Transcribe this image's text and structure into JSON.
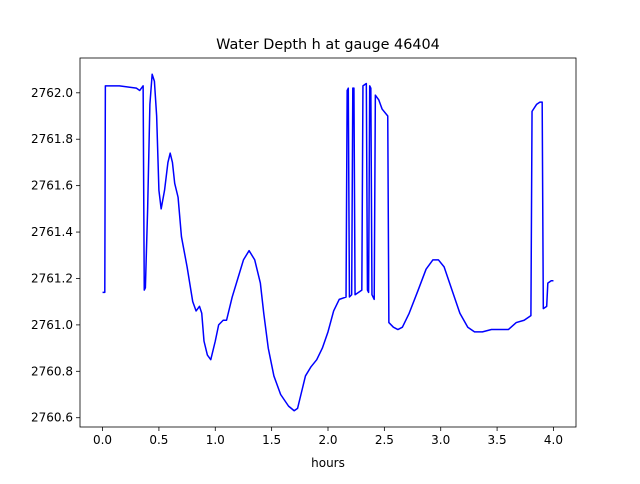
{
  "chart_data": {
    "type": "line",
    "title": "Water Depth h at gauge 46404",
    "xlabel": "hours",
    "ylabel": "",
    "xlim": [
      -0.2,
      4.2
    ],
    "ylim": [
      2760.56,
      2762.15
    ],
    "xticks": [
      0.0,
      0.5,
      1.0,
      1.5,
      2.0,
      2.5,
      3.0,
      3.5,
      4.0
    ],
    "xtick_labels": [
      "0.0",
      "0.5",
      "1.0",
      "1.5",
      "2.0",
      "2.5",
      "3.0",
      "3.5",
      "4.0"
    ],
    "yticks": [
      2760.6,
      2760.8,
      2761.0,
      2761.2,
      2761.4,
      2761.6,
      2761.8,
      2762.0
    ],
    "ytick_labels": [
      "2760.6",
      "2760.8",
      "2761.0",
      "2761.2",
      "2761.4",
      "2761.6",
      "2761.8",
      "2762.0"
    ],
    "grid": false,
    "colors": {
      "line": "#0000ff",
      "axes": "#000000",
      "background": "#ffffff"
    },
    "series": [
      {
        "values_xy": [
          [
            0.0,
            2761.14
          ],
          [
            0.02,
            2761.14
          ],
          [
            0.025,
            2762.03
          ],
          [
            0.15,
            2762.03
          ],
          [
            0.3,
            2762.02
          ],
          [
            0.33,
            2762.01
          ],
          [
            0.36,
            2762.03
          ],
          [
            0.37,
            2761.15
          ],
          [
            0.38,
            2761.16
          ],
          [
            0.4,
            2761.5
          ],
          [
            0.42,
            2761.95
          ],
          [
            0.44,
            2762.08
          ],
          [
            0.46,
            2762.05
          ],
          [
            0.48,
            2761.9
          ],
          [
            0.5,
            2761.58
          ],
          [
            0.52,
            2761.5
          ],
          [
            0.55,
            2761.58
          ],
          [
            0.58,
            2761.7
          ],
          [
            0.6,
            2761.74
          ],
          [
            0.62,
            2761.7
          ],
          [
            0.64,
            2761.61
          ],
          [
            0.67,
            2761.55
          ],
          [
            0.7,
            2761.38
          ],
          [
            0.75,
            2761.25
          ],
          [
            0.8,
            2761.1
          ],
          [
            0.83,
            2761.06
          ],
          [
            0.86,
            2761.08
          ],
          [
            0.88,
            2761.05
          ],
          [
            0.9,
            2760.93
          ],
          [
            0.93,
            2760.87
          ],
          [
            0.96,
            2760.85
          ],
          [
            1.0,
            2760.93
          ],
          [
            1.03,
            2761.0
          ],
          [
            1.07,
            2761.02
          ],
          [
            1.1,
            2761.02
          ],
          [
            1.15,
            2761.12
          ],
          [
            1.2,
            2761.2
          ],
          [
            1.25,
            2761.28
          ],
          [
            1.3,
            2761.32
          ],
          [
            1.35,
            2761.28
          ],
          [
            1.4,
            2761.18
          ],
          [
            1.43,
            2761.05
          ],
          [
            1.47,
            2760.9
          ],
          [
            1.52,
            2760.78
          ],
          [
            1.58,
            2760.7
          ],
          [
            1.65,
            2760.65
          ],
          [
            1.7,
            2760.63
          ],
          [
            1.73,
            2760.64
          ],
          [
            1.77,
            2760.72
          ],
          [
            1.8,
            2760.78
          ],
          [
            1.85,
            2760.82
          ],
          [
            1.9,
            2760.85
          ],
          [
            1.95,
            2760.9
          ],
          [
            2.0,
            2760.97
          ],
          [
            2.05,
            2761.06
          ],
          [
            2.1,
            2761.11
          ],
          [
            2.16,
            2761.12
          ],
          [
            2.17,
            2762.01
          ],
          [
            2.18,
            2762.02
          ],
          [
            2.19,
            2761.12
          ],
          [
            2.21,
            2761.13
          ],
          [
            2.22,
            2762.02
          ],
          [
            2.23,
            2762.02
          ],
          [
            2.24,
            2761.13
          ],
          [
            2.3,
            2761.15
          ],
          [
            2.31,
            2762.03
          ],
          [
            2.34,
            2762.04
          ],
          [
            2.35,
            2761.15
          ],
          [
            2.36,
            2761.14
          ],
          [
            2.37,
            2762.03
          ],
          [
            2.38,
            2762.02
          ],
          [
            2.39,
            2761.13
          ],
          [
            2.41,
            2761.11
          ],
          [
            2.42,
            2761.99
          ],
          [
            2.45,
            2761.97
          ],
          [
            2.48,
            2761.93
          ],
          [
            2.53,
            2761.9
          ],
          [
            2.54,
            2761.01
          ],
          [
            2.58,
            2760.99
          ],
          [
            2.62,
            2760.98
          ],
          [
            2.66,
            2760.99
          ],
          [
            2.72,
            2761.05
          ],
          [
            2.8,
            2761.15
          ],
          [
            2.87,
            2761.24
          ],
          [
            2.93,
            2761.28
          ],
          [
            2.98,
            2761.28
          ],
          [
            3.03,
            2761.25
          ],
          [
            3.1,
            2761.15
          ],
          [
            3.17,
            2761.05
          ],
          [
            3.24,
            2760.99
          ],
          [
            3.3,
            2760.97
          ],
          [
            3.37,
            2760.97
          ],
          [
            3.45,
            2760.98
          ],
          [
            3.52,
            2760.98
          ],
          [
            3.6,
            2760.98
          ],
          [
            3.67,
            2761.01
          ],
          [
            3.74,
            2761.02
          ],
          [
            3.8,
            2761.04
          ],
          [
            3.81,
            2761.92
          ],
          [
            3.85,
            2761.95
          ],
          [
            3.88,
            2761.96
          ],
          [
            3.9,
            2761.96
          ],
          [
            3.91,
            2761.07
          ],
          [
            3.94,
            2761.08
          ],
          [
            3.95,
            2761.18
          ],
          [
            3.98,
            2761.19
          ],
          [
            4.0,
            2761.19
          ]
        ]
      }
    ]
  }
}
